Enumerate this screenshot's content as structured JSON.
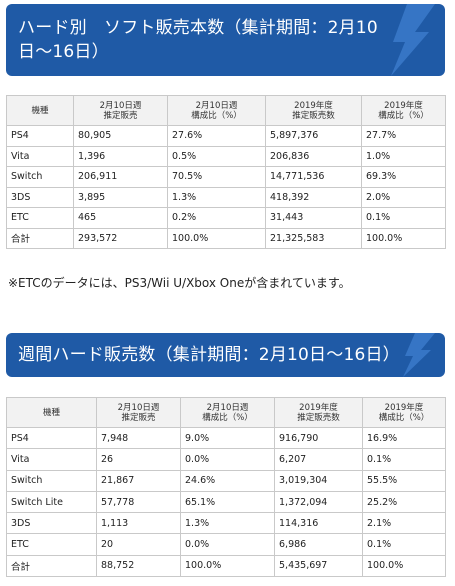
{
  "section1": {
    "title_line1": "ハード別　ソフト販売本数（集計期間：2月10",
    "title_line2": "日〜16日）",
    "headers": [
      "機種",
      "2月10日週\n推定販売",
      "2月10日週\n構成比（%）",
      "2019年度\n推定販売数",
      "2019年度\n構成比（%）"
    ],
    "rows": [
      [
        "PS4",
        "80,905",
        "27.6%",
        "5,897,376",
        "27.7%"
      ],
      [
        "Vita",
        "1,396",
        "0.5%",
        "206,836",
        "1.0%"
      ],
      [
        "Switch",
        "206,911",
        "70.5%",
        "14,771,536",
        "69.3%"
      ],
      [
        "3DS",
        "3,895",
        "1.3%",
        "418,392",
        "2.0%"
      ],
      [
        "ETC",
        "465",
        "0.2%",
        "31,443",
        "0.1%"
      ],
      [
        "合計",
        "293,572",
        "100.0%",
        "21,325,583",
        "100.0%"
      ]
    ]
  },
  "note": "※ETCのデータには、PS3/Wii U/Xbox Oneが含まれています。",
  "section2": {
    "title": "週間ハード販売数（集計期間：2月10日〜16日）",
    "headers": [
      "機種",
      "2月10日週\n推定販売",
      "2月10日週\n構成比（%）",
      "2019年度\n推定販売数",
      "2019年度\n構成比（%）"
    ],
    "rows": [
      [
        "PS4",
        "7,948",
        "9.0%",
        "916,790",
        "16.9%"
      ],
      [
        "Vita",
        "26",
        "0.0%",
        "6,207",
        "0.1%"
      ],
      [
        "Switch",
        "21,867",
        "24.6%",
        "3,019,304",
        "55.5%"
      ],
      [
        "Switch Lite",
        "57,778",
        "65.1%",
        "1,372,094",
        "25.2%"
      ],
      [
        "3DS",
        "1,113",
        "1.3%",
        "114,316",
        "2.1%"
      ],
      [
        "ETC",
        "20",
        "0.0%",
        "6,986",
        "0.1%"
      ],
      [
        "合計",
        "88,752",
        "100.0%",
        "5,435,697",
        "100.0%"
      ]
    ]
  },
  "colors": {
    "banner": "#1f5aa6",
    "header_bg": "#f2f2f2",
    "border": "#c9c9c9"
  }
}
